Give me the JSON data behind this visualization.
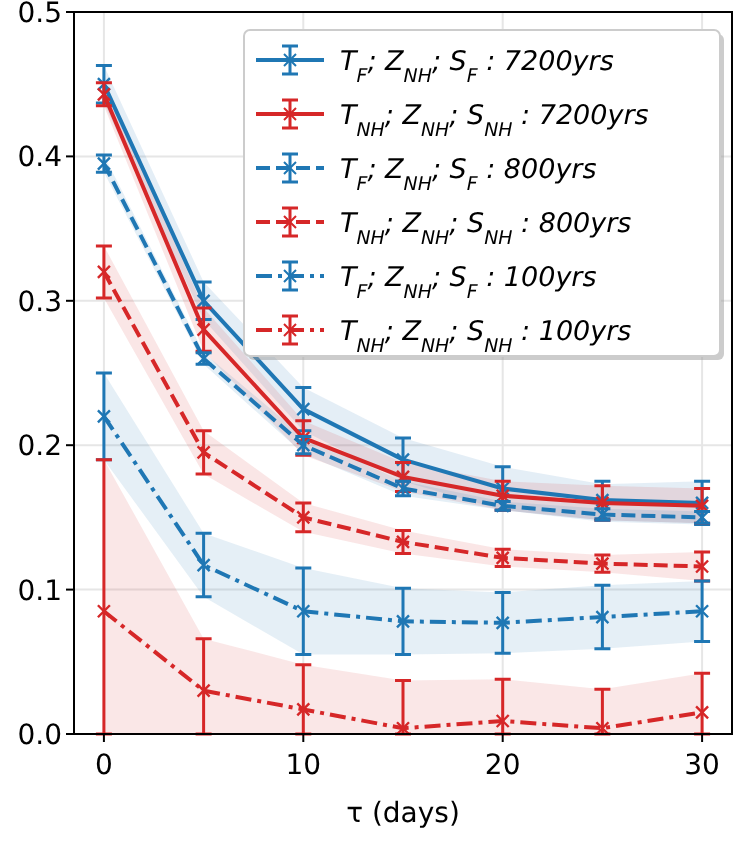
{
  "chart_data": {
    "type": "line",
    "xlabel": "τ (days)",
    "x": [
      0,
      5,
      10,
      15,
      20,
      25,
      30
    ],
    "xlim": [
      -1.5,
      31.5
    ],
    "xticks": [
      0,
      10,
      20,
      30
    ],
    "ylim": [
      0,
      0.5
    ],
    "yticks": [
      {
        "value": 0,
        "label": "0.0"
      },
      0.1,
      0.2,
      0.3,
      0.4,
      0.5
    ],
    "grid": true,
    "legend": "top right",
    "marker": "cross",
    "series": [
      {
        "name": "T$_{F}$; Z$_{NH}$; S$_{F}$ : 7200yrs",
        "color": "#1f77b4",
        "line_style": "solid",
        "values": [
          0.45,
          0.3,
          0.225,
          0.19,
          0.17,
          0.162,
          0.16
        ],
        "errors": [
          0.013,
          0.013,
          0.015,
          0.015,
          0.015,
          0.013,
          0.015
        ],
        "lower": [
          0.437,
          0.287,
          0.21,
          0.175,
          0.155,
          0.147,
          0.145
        ],
        "upper": [
          0.463,
          0.313,
          0.24,
          0.205,
          0.185,
          0.173,
          0.175
        ]
      },
      {
        "name": "T$_{NH}$; Z$_{NH}$; S$_{NH}$ : 7200yrs",
        "color": "#d62728",
        "line_style": "solid",
        "values": [
          0.443,
          0.28,
          0.205,
          0.178,
          0.165,
          0.16,
          0.158
        ],
        "errors": [
          0.008,
          0.015,
          0.012,
          0.01,
          0.01,
          0.012,
          0.012
        ],
        "lower": [
          0.435,
          0.265,
          0.193,
          0.168,
          0.155,
          0.148,
          0.146
        ],
        "upper": [
          0.451,
          0.295,
          0.217,
          0.188,
          0.175,
          0.172,
          0.17
        ]
      },
      {
        "name": "T$_{F}$; Z$_{NH}$; S$_{F}$ : 800yrs",
        "color": "#1f77b4",
        "line_style": "dashed",
        "values": [
          0.395,
          0.26,
          0.2,
          0.17,
          0.158,
          0.152,
          0.15
        ],
        "errors": [
          0.006,
          0.004,
          0.006,
          0.005,
          0.003,
          0.004,
          0.004
        ],
        "lower": [
          0.389,
          0.256,
          0.194,
          0.165,
          0.155,
          0.148,
          0.146
        ],
        "upper": [
          0.401,
          0.264,
          0.206,
          0.175,
          0.161,
          0.156,
          0.154
        ]
      },
      {
        "name": "T$_{NH}$; Z$_{NH}$; S$_{NH}$ : 800yrs",
        "color": "#d62728",
        "line_style": "dashed",
        "values": [
          0.32,
          0.195,
          0.15,
          0.133,
          0.122,
          0.118,
          0.116
        ],
        "errors": [
          0.018,
          0.015,
          0.01,
          0.008,
          0.006,
          0.006,
          0.01
        ],
        "lower": [
          0.302,
          0.18,
          0.14,
          0.125,
          0.116,
          0.112,
          0.106
        ],
        "upper": [
          0.338,
          0.21,
          0.16,
          0.141,
          0.128,
          0.124,
          0.126
        ]
      },
      {
        "name": "T$_{F}$; Z$_{NH}$; S$_{F}$ : 100yrs",
        "color": "#1f77b4",
        "line_style": "dashdot",
        "values": [
          0.22,
          0.117,
          0.085,
          0.078,
          0.077,
          0.081,
          0.085
        ],
        "errors": [
          0.03,
          0.022,
          0.03,
          0.023,
          0.021,
          0.022,
          0.021
        ],
        "lower": [
          0.19,
          0.095,
          0.055,
          0.055,
          0.056,
          0.059,
          0.064
        ],
        "upper": [
          0.25,
          0.139,
          0.115,
          0.101,
          0.098,
          0.103,
          0.106
        ]
      },
      {
        "name": "T$_{NH}$; Z$_{NH}$; S$_{NH}$ : 100yrs",
        "color": "#d62728",
        "line_style": "dashdot",
        "values": [
          0.085,
          0.03,
          0.017,
          0.004,
          0.009,
          0.004,
          0.015
        ],
        "errors": [
          [
            0,
            0.19
          ],
          [
            0,
            0.066
          ],
          [
            0,
            0.048
          ],
          [
            0,
            0.037
          ],
          [
            0,
            0.038
          ],
          [
            0,
            0.031
          ],
          [
            0,
            0.042
          ]
        ],
        "lower": [
          0,
          0,
          0,
          0,
          0,
          0,
          0
        ],
        "upper": [
          0.19,
          0.066,
          0.048,
          0.037,
          0.038,
          0.031,
          0.042
        ]
      }
    ]
  }
}
